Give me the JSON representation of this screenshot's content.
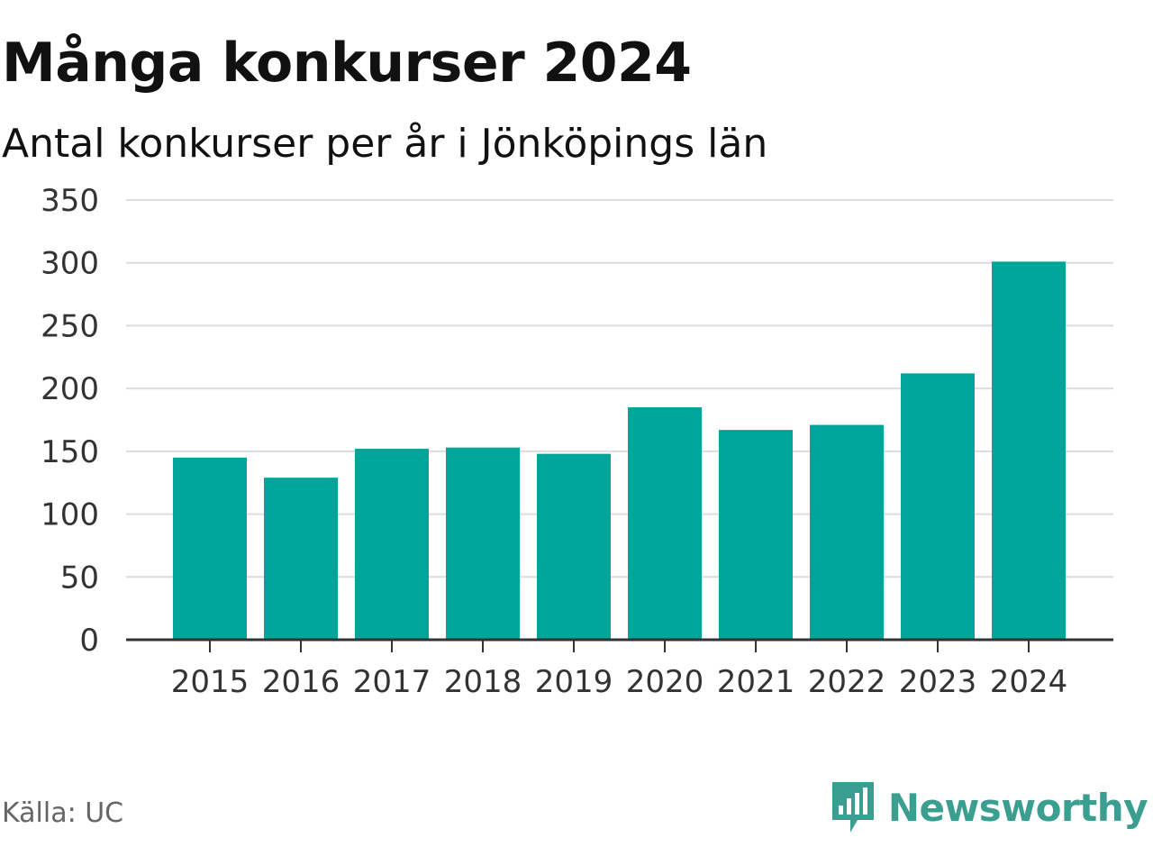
{
  "chart_data": {
    "type": "bar",
    "title": "Många konkurser 2024",
    "subtitle": "Antal konkurser per år i Jönköpings län",
    "categories": [
      "2015",
      "2016",
      "2017",
      "2018",
      "2019",
      "2020",
      "2021",
      "2022",
      "2023",
      "2024"
    ],
    "values": [
      145,
      129,
      152,
      153,
      148,
      185,
      167,
      171,
      212,
      301
    ],
    "ylim": [
      0,
      350
    ],
    "yticks": [
      0,
      50,
      100,
      150,
      200,
      250,
      300,
      350
    ],
    "xlabel": "",
    "ylabel": "",
    "grid": true,
    "bar_color": "#00a59a"
  },
  "footer": {
    "source": "Källa: UC",
    "brand": "Newsworthy",
    "brand_icon": "newsworthy-logo-icon",
    "brand_color": "#3a9e90"
  }
}
